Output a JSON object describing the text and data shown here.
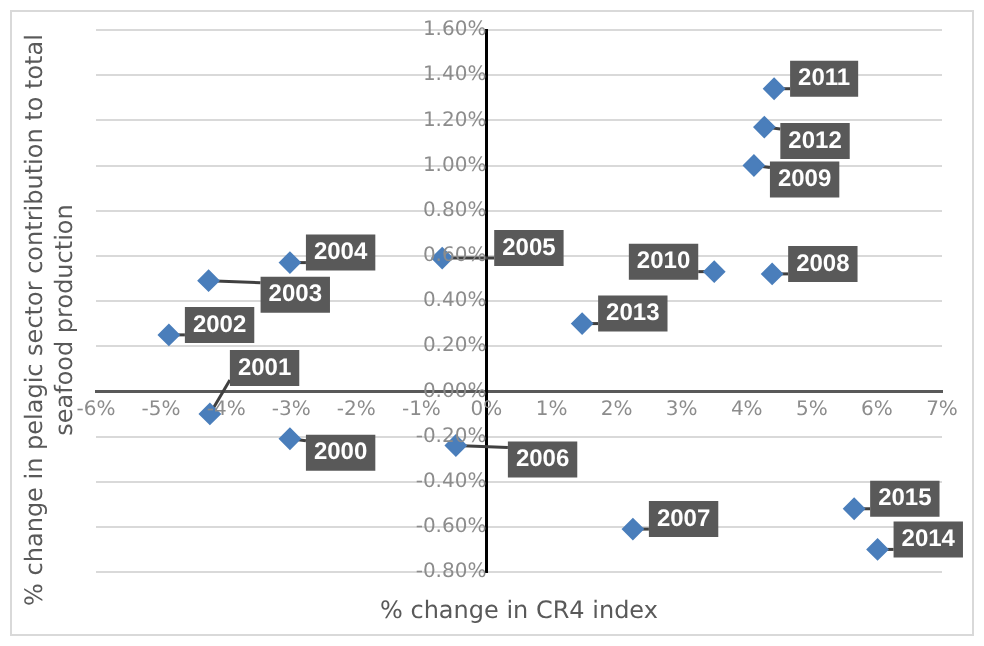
{
  "chart_data": {
    "type": "scatter",
    "xlabel": "% change in CR4 index",
    "ylabel": "% change in pelagic sector contribution to total seafood production",
    "x": [
      -3.02,
      -4.25,
      -4.88,
      -4.27,
      -3.02,
      -0.68,
      -0.47,
      2.25,
      4.39,
      4.11,
      3.5,
      4.42,
      4.27,
      1.47,
      6.01,
      5.65
    ],
    "series": [
      {
        "color": "#4a7ebb",
        "values": [
          -0.21,
          -0.1,
          0.25,
          0.49,
          0.57,
          0.59,
          -0.24,
          -0.61,
          0.52,
          1.0,
          0.53,
          1.34,
          1.17,
          0.3,
          -0.7,
          -0.52
        ]
      }
    ],
    "annotations": [
      {
        "text": "2000",
        "x": -3.02,
        "y": -0.21
      },
      {
        "text": "2001",
        "x": -4.25,
        "y": -0.1
      },
      {
        "text": "2002",
        "x": -4.88,
        "y": 0.25
      },
      {
        "text": "2003",
        "x": -4.27,
        "y": 0.49
      },
      {
        "text": "2004",
        "x": -3.02,
        "y": 0.57
      },
      {
        "text": "2005",
        "x": -0.68,
        "y": 0.59
      },
      {
        "text": "2006",
        "x": -0.47,
        "y": -0.24
      },
      {
        "text": "2007",
        "x": 2.25,
        "y": -0.61
      },
      {
        "text": "2008",
        "x": 4.39,
        "y": 0.52
      },
      {
        "text": "2009",
        "x": 4.11,
        "y": 1.0
      },
      {
        "text": "2010",
        "x": 3.5,
        "y": 0.53
      },
      {
        "text": "2011",
        "x": 4.42,
        "y": 1.34
      },
      {
        "text": "2012",
        "x": 4.27,
        "y": 1.17
      },
      {
        "text": "2013",
        "x": 1.47,
        "y": 0.3
      },
      {
        "text": "2014",
        "x": 6.01,
        "y": -0.7
      },
      {
        "text": "2015",
        "x": 5.65,
        "y": -0.52
      }
    ],
    "xlim": [
      -6,
      7
    ],
    "xticks": [
      {
        "value": -6,
        "label": "-6%"
      },
      {
        "value": -5,
        "label": "-5%"
      },
      {
        "value": -4,
        "label": "-4%"
      },
      {
        "value": -3,
        "label": "-3%"
      },
      {
        "value": -2,
        "label": "-2%"
      },
      {
        "value": -1,
        "label": "-1%"
      },
      {
        "value": 0,
        "label": "0%"
      },
      {
        "value": 1,
        "label": "1%"
      },
      {
        "value": 2,
        "label": "2%"
      },
      {
        "value": 3,
        "label": "3%"
      },
      {
        "value": 4,
        "label": "4%"
      },
      {
        "value": 5,
        "label": "5%"
      },
      {
        "value": 6,
        "label": "6%"
      },
      {
        "value": 7,
        "label": "7%"
      }
    ],
    "ylim": [
      -0.8,
      1.6
    ],
    "yticks": [
      {
        "value": -0.8,
        "label": "-0.80%"
      },
      {
        "value": -0.6,
        "label": "-0.60%"
      },
      {
        "value": -0.4,
        "label": "-0.40%"
      },
      {
        "value": -0.2,
        "label": "-0.20%"
      },
      {
        "value": 0,
        "label": "0.00%"
      },
      {
        "value": 0.2,
        "label": "0.20%"
      },
      {
        "value": 0.4,
        "label": "0.40%"
      },
      {
        "value": 0.6,
        "label": "0.60%"
      },
      {
        "value": 0.8,
        "label": "0.80%"
      },
      {
        "value": 1.0,
        "label": "1.00%"
      },
      {
        "value": 1.2,
        "label": "1.20%"
      },
      {
        "value": 1.4,
        "label": "1.40%"
      },
      {
        "value": 1.6,
        "label": "1.60%"
      }
    ],
    "grid": "y",
    "legend": false,
    "marker": "diamond"
  }
}
